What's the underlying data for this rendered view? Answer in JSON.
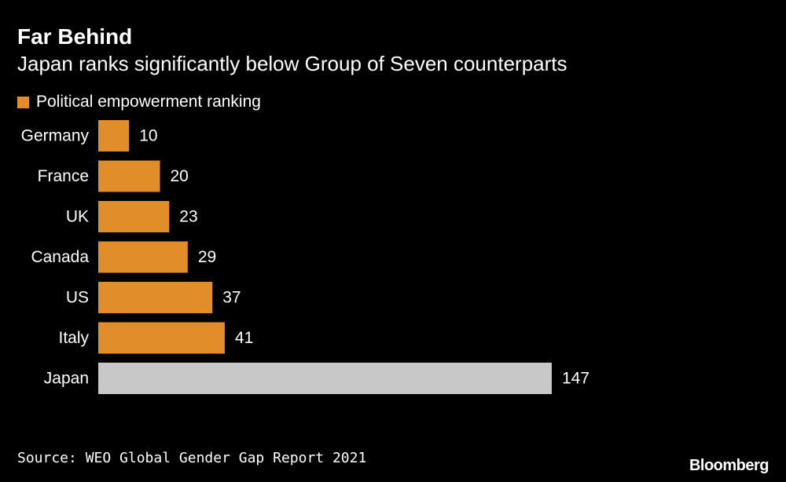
{
  "chart_data": {
    "type": "bar",
    "orientation": "horizontal",
    "title": "Far Behind",
    "subtitle": "Japan ranks significantly below Group of Seven counterparts",
    "categories": [
      "Germany",
      "France",
      "UK",
      "Canada",
      "US",
      "Italy",
      "Japan"
    ],
    "series": [
      {
        "name": "Political empowerment ranking",
        "values": [
          10,
          20,
          23,
          29,
          37,
          41,
          147
        ]
      }
    ],
    "value_labels": [
      "10",
      "20",
      "23",
      "29",
      "37",
      "41",
      "147"
    ],
    "xlim": [
      0,
      150
    ],
    "grid": false,
    "legend_position": "top-left",
    "highlight_category": "Japan"
  },
  "colors": {
    "background": "#000000",
    "bar": "#e08d2a",
    "highlight_bar": "#c8c8c8",
    "text": "#ffffff"
  },
  "footer": {
    "source": "Source: WEO Global Gender Gap Report 2021",
    "brand": "Bloomberg"
  }
}
